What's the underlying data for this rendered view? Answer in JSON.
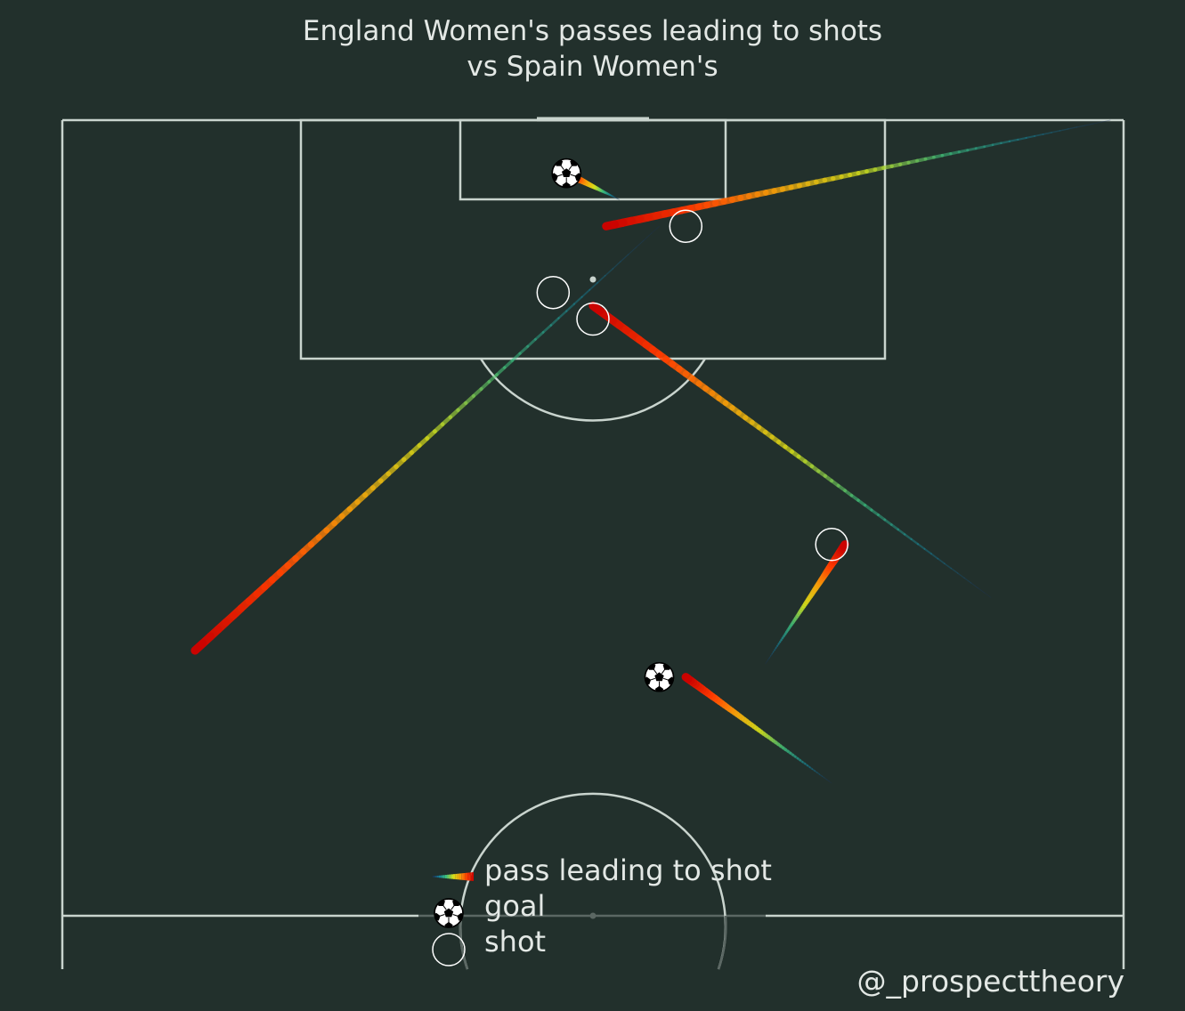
{
  "chart_data": {
    "type": "scatter",
    "title": [
      "England Women's passes leading to shots",
      "vs Spain Women's"
    ],
    "xlabel": "",
    "ylabel": "",
    "pitch": {
      "length": 120,
      "width": 80,
      "shown": "attacking half, goal at top"
    },
    "passes": [
      {
        "start": [
          120.0,
          79.0
        ],
        "end": [
          112.0,
          41.0
        ],
        "outcome": "shot"
      },
      {
        "start": [
          84.0,
          70.0
        ],
        "end": [
          106.0,
          40.0
        ],
        "outcome": "shot"
      },
      {
        "start": [
          112.0,
          45.0
        ],
        "end": [
          80.0,
          10.0
        ],
        "outcome": "shot"
      },
      {
        "start": [
          79.0,
          53.0
        ],
        "end": [
          88.0,
          59.0
        ],
        "outcome": "shot"
      },
      {
        "start": [
          114.0,
          42.0
        ],
        "end": [
          116.0,
          38.0
        ],
        "outcome": "goal"
      },
      {
        "start": [
          70.0,
          58.0
        ],
        "end": [
          78.0,
          47.0
        ],
        "outcome": "goal"
      }
    ],
    "shots": [
      {
        "x": 112.0,
        "y": 47.0,
        "outcome": "shot"
      },
      {
        "x": 107.0,
        "y": 37.0,
        "outcome": "shot"
      },
      {
        "x": 105.0,
        "y": 40.0,
        "outcome": "shot"
      },
      {
        "x": 88.0,
        "y": 58.0,
        "outcome": "shot"
      },
      {
        "x": 116.0,
        "y": 38.0,
        "outcome": "goal"
      },
      {
        "x": 78.0,
        "y": 45.0,
        "outcome": "goal"
      }
    ],
    "colormap": [
      "#1b2d5c",
      "#16829a",
      "#3fc47e",
      "#d8e21a",
      "#f5a10a",
      "#ff3c00",
      "#c80000"
    ],
    "legend": {
      "position": "bottom-center",
      "items": [
        {
          "key": "pass",
          "label": "pass leading to shot"
        },
        {
          "key": "goal",
          "label": "goal"
        },
        {
          "key": "shot",
          "label": "shot"
        }
      ]
    },
    "credit": "@_prospecttheory"
  },
  "colors": {
    "background": "#22302c",
    "lines": "#c9d4ce",
    "text": "#e3e8e5"
  }
}
